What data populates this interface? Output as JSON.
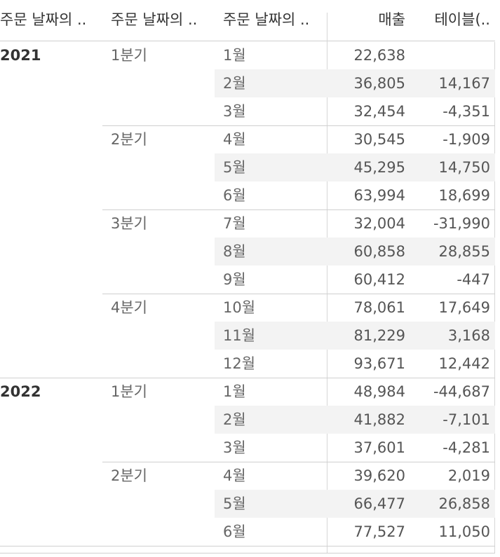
{
  "headers": {
    "year": "주문 날짜의 ..",
    "quarter": "주문 날짜의 ..",
    "month": "주문 날짜의 ..",
    "sales": "매출",
    "table_calc": "테이블(.."
  },
  "years": [
    {
      "label": "2021",
      "quarters": [
        {
          "label": "1분기",
          "months": [
            {
              "month": "1월",
              "sales": "22,638",
              "diff": ""
            },
            {
              "month": "2월",
              "sales": "36,805",
              "diff": "14,167"
            },
            {
              "month": "3월",
              "sales": "32,454",
              "diff": "-4,351"
            }
          ]
        },
        {
          "label": "2분기",
          "months": [
            {
              "month": "4월",
              "sales": "30,545",
              "diff": "-1,909"
            },
            {
              "month": "5월",
              "sales": "45,295",
              "diff": "14,750"
            },
            {
              "month": "6월",
              "sales": "63,994",
              "diff": "18,699"
            }
          ]
        },
        {
          "label": "3분기",
          "months": [
            {
              "month": "7월",
              "sales": "32,004",
              "diff": "-31,990"
            },
            {
              "month": "8월",
              "sales": "60,858",
              "diff": "28,855"
            },
            {
              "month": "9월",
              "sales": "60,412",
              "diff": "-447"
            }
          ]
        },
        {
          "label": "4분기",
          "months": [
            {
              "month": "10월",
              "sales": "78,061",
              "diff": "17,649"
            },
            {
              "month": "11월",
              "sales": "81,229",
              "diff": "3,168"
            },
            {
              "month": "12월",
              "sales": "93,671",
              "diff": "12,442"
            }
          ]
        }
      ]
    },
    {
      "label": "2022",
      "quarters": [
        {
          "label": "1분기",
          "months": [
            {
              "month": "1월",
              "sales": "48,984",
              "diff": "-44,687"
            },
            {
              "month": "2월",
              "sales": "41,882",
              "diff": "-7,101"
            },
            {
              "month": "3월",
              "sales": "37,601",
              "diff": "-4,281"
            }
          ]
        },
        {
          "label": "2분기",
          "months": [
            {
              "month": "4월",
              "sales": "39,620",
              "diff": "2,019"
            },
            {
              "month": "5월",
              "sales": "66,477",
              "diff": "26,858"
            },
            {
              "month": "6월",
              "sales": "77,527",
              "diff": "11,050"
            }
          ]
        }
      ]
    }
  ]
}
